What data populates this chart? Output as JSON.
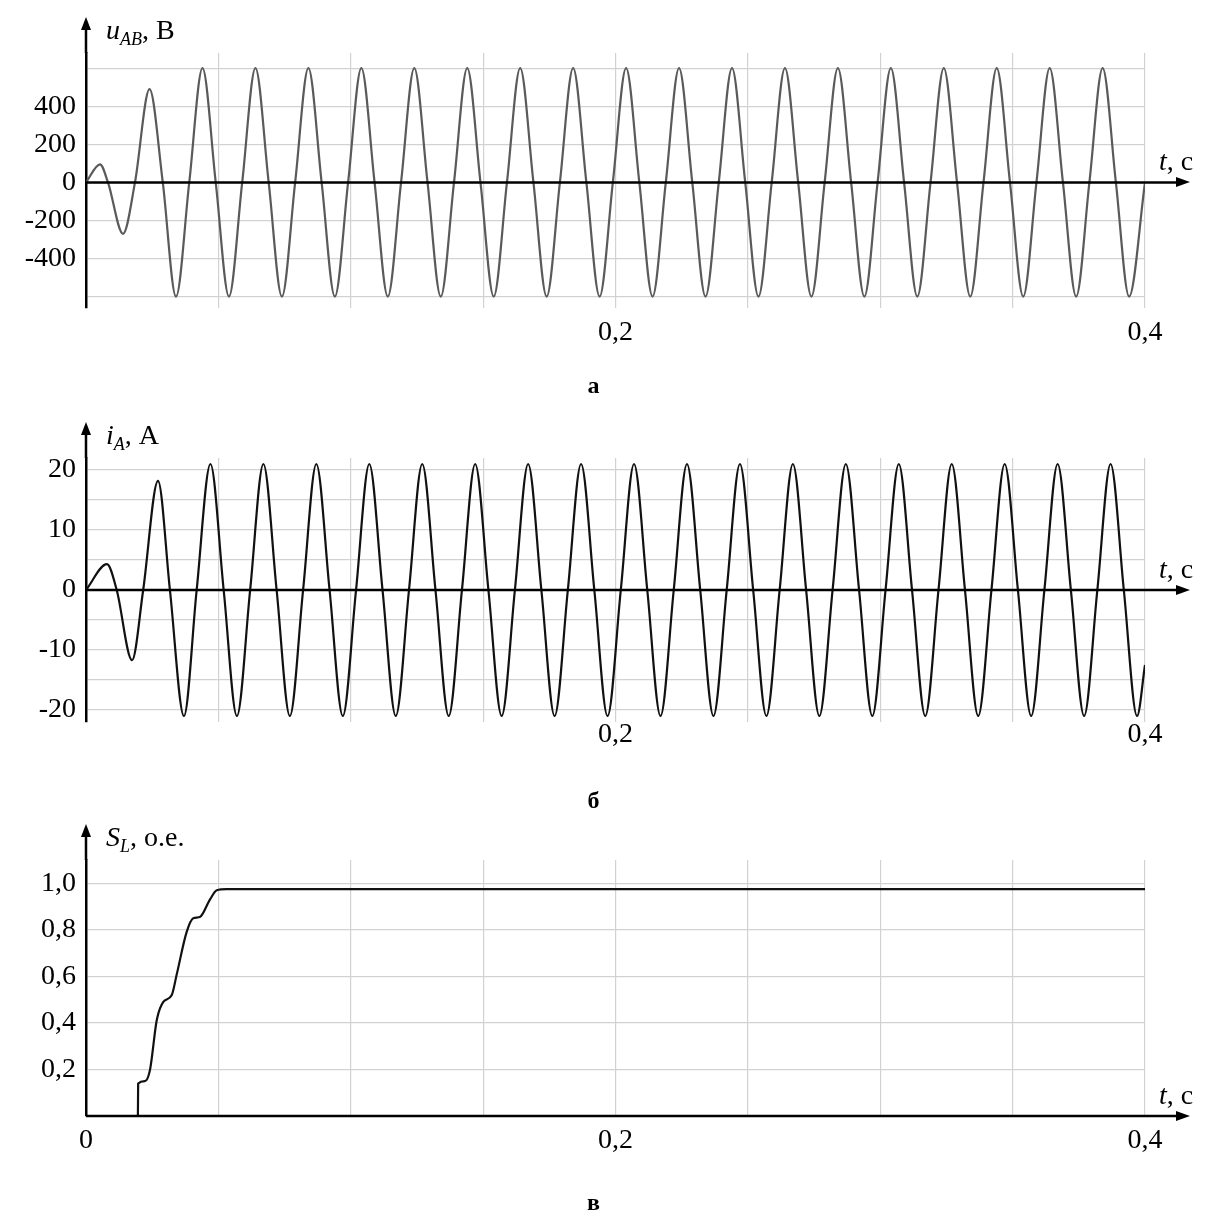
{
  "chart_data": [
    {
      "type": "line",
      "xlabel": "t, с",
      "ylabel": "u$_{AB}$, В",
      "annotations": [
        "а"
      ],
      "color": "#5a5a5a",
      "grid": true,
      "xlim": [
        0,
        0.4
      ],
      "ylim": [
        -660,
        680
      ],
      "xticks": [
        {
          "value": 0.05,
          "label": null
        },
        {
          "value": 0.1,
          "label": null
        },
        {
          "value": 0.15,
          "label": null
        },
        {
          "value": 0.2,
          "label": "0,2"
        },
        {
          "value": 0.25,
          "label": null
        },
        {
          "value": 0.3,
          "label": null
        },
        {
          "value": 0.35,
          "label": null
        },
        {
          "value": 0.4,
          "label": "0,4"
        }
      ],
      "yticks": [
        {
          "value": -600,
          "label": null
        },
        -400,
        -200,
        0,
        200,
        400,
        {
          "value": 600,
          "label": null
        }
      ],
      "x": [
        0,
        0.0053,
        0.0083,
        0.014,
        0.0185,
        0.024,
        0.029,
        0.034,
        0.039,
        0.044,
        0.049,
        0.054,
        0.059,
        0.064,
        0.069,
        0.074,
        0.079,
        0.084,
        0.089,
        0.094,
        0.099,
        0.104,
        0.109,
        0.114,
        0.119,
        0.124,
        0.129,
        0.134,
        0.139,
        0.144,
        0.149,
        0.154,
        0.159,
        0.164,
        0.169,
        0.174,
        0.179,
        0.184,
        0.189,
        0.194,
        0.199,
        0.204,
        0.209,
        0.214,
        0.219,
        0.224,
        0.229,
        0.234,
        0.239,
        0.244,
        0.249,
        0.254,
        0.259,
        0.264,
        0.269,
        0.274,
        0.279,
        0.284,
        0.289,
        0.294,
        0.299,
        0.304,
        0.309,
        0.314,
        0.319,
        0.324,
        0.329,
        0.334,
        0.339,
        0.344,
        0.349,
        0.354,
        0.359,
        0.364,
        0.369,
        0.374,
        0.379,
        0.384,
        0.389,
        0.394,
        0.4
      ],
      "values": [
        0,
        95,
        0,
        -270,
        0,
        490,
        0,
        -600,
        0,
        600,
        0,
        -600,
        0,
        600,
        0,
        -600,
        0,
        600,
        0,
        -600,
        0,
        600,
        0,
        -600,
        0,
        600,
        0,
        -600,
        0,
        600,
        0,
        -600,
        0,
        600,
        0,
        -600,
        0,
        600,
        0,
        -600,
        0,
        600,
        0,
        -600,
        0,
        600,
        0,
        -600,
        0,
        600,
        0,
        -600,
        0,
        600,
        0,
        -600,
        0,
        600,
        0,
        -600,
        0,
        600,
        0,
        -600,
        0,
        600,
        0,
        -600,
        0,
        600,
        0,
        -600,
        0,
        600,
        0,
        -600,
        0,
        600,
        0,
        -600,
        0
      ]
    },
    {
      "type": "line",
      "xlabel": "t, с",
      "ylabel": "i$_{A}$, А",
      "annotations": [
        "б"
      ],
      "color": "#111111",
      "grid": true,
      "xlim": [
        0,
        0.4
      ],
      "ylim": [
        -22,
        22
      ],
      "xticks": [
        {
          "value": 0.05,
          "label": null
        },
        {
          "value": 0.1,
          "label": null
        },
        {
          "value": 0.15,
          "label": null
        },
        {
          "value": 0.2,
          "label": "0,2"
        },
        {
          "value": 0.25,
          "label": null
        },
        {
          "value": 0.3,
          "label": null
        },
        {
          "value": 0.35,
          "label": null
        },
        {
          "value": 0.4,
          "label": "0,4"
        }
      ],
      "yticks": [
        -20,
        {
          "value": -15,
          "label": null
        },
        -10,
        {
          "value": -5,
          "label": null
        },
        0,
        {
          "value": 5,
          "label": null
        },
        10,
        {
          "value": 15,
          "label": null
        },
        20
      ],
      "x": [
        0,
        0.0079,
        0.0116,
        0.0174,
        0.0216,
        0.0272,
        0.0317,
        0.037,
        0.0418,
        0.047,
        0.052,
        0.057,
        0.062,
        0.067,
        0.072,
        0.077,
        0.082,
        0.087,
        0.092,
        0.097,
        0.102,
        0.107,
        0.112,
        0.117,
        0.122,
        0.127,
        0.132,
        0.137,
        0.142,
        0.147,
        0.152,
        0.157,
        0.162,
        0.167,
        0.172,
        0.177,
        0.182,
        0.187,
        0.192,
        0.197,
        0.202,
        0.207,
        0.212,
        0.217,
        0.222,
        0.227,
        0.232,
        0.237,
        0.242,
        0.247,
        0.252,
        0.257,
        0.262,
        0.267,
        0.272,
        0.277,
        0.282,
        0.287,
        0.292,
        0.297,
        0.302,
        0.307,
        0.312,
        0.317,
        0.322,
        0.327,
        0.332,
        0.337,
        0.342,
        0.347,
        0.352,
        0.357,
        0.362,
        0.367,
        0.372,
        0.377,
        0.382,
        0.387,
        0.392,
        0.397,
        0.4
      ],
      "values": [
        0,
        4.3,
        0,
        -11.7,
        0,
        18.2,
        0,
        -21,
        0,
        21,
        0,
        -21,
        0,
        21,
        0,
        -21,
        0,
        21,
        0,
        -21,
        0,
        21,
        0,
        -21,
        0,
        21,
        0,
        -21,
        0,
        21,
        0,
        -21,
        0,
        21,
        0,
        -21,
        0,
        21,
        0,
        -21,
        0,
        21,
        0,
        -21,
        0,
        21,
        0,
        -21,
        0,
        21,
        0,
        -21,
        0,
        21,
        0,
        -21,
        0,
        21,
        0,
        -21,
        0,
        21,
        0,
        -21,
        0,
        21,
        0,
        -21,
        0,
        21,
        0,
        -21,
        0,
        21,
        0,
        -21,
        0,
        21,
        0,
        -21,
        -12.5
      ]
    },
    {
      "type": "line",
      "xlabel": "t, с",
      "ylabel": "S$_{L}$, о.е.",
      "annotations": [
        "в"
      ],
      "color": "#111111",
      "grid": true,
      "xlim": [
        0,
        0.4
      ],
      "ylim": [
        0,
        1.1
      ],
      "xticks": [
        {
          "value": 0,
          "label": "0"
        },
        {
          "value": 0.05,
          "label": null
        },
        {
          "value": 0.1,
          "label": null
        },
        {
          "value": 0.15,
          "label": null
        },
        {
          "value": 0.2,
          "label": "0,2"
        },
        {
          "value": 0.25,
          "label": null
        },
        {
          "value": 0.3,
          "label": null
        },
        {
          "value": 0.35,
          "label": null
        },
        {
          "value": 0.4,
          "label": "0,4"
        }
      ],
      "yticks": [
        {
          "value": 0.2,
          "label": "0,2"
        },
        {
          "value": 0.4,
          "label": "0,4"
        },
        {
          "value": 0.6,
          "label": "0,6"
        },
        {
          "value": 0.8,
          "label": "0,8"
        },
        {
          "value": 1,
          "label": "1,0"
        }
      ],
      "x": [
        0,
        0.0196,
        0.0197,
        0.0223,
        0.0242,
        0.0267,
        0.0292,
        0.0324,
        0.0343,
        0.038,
        0.0405,
        0.043,
        0.0468,
        0.0494,
        0.0531,
        0.4
      ],
      "values": [
        0,
        0,
        0.14,
        0.15,
        0.2,
        0.41,
        0.49,
        0.52,
        0.61,
        0.79,
        0.85,
        0.855,
        0.93,
        0.97,
        0.975,
        0.975
      ]
    }
  ]
}
